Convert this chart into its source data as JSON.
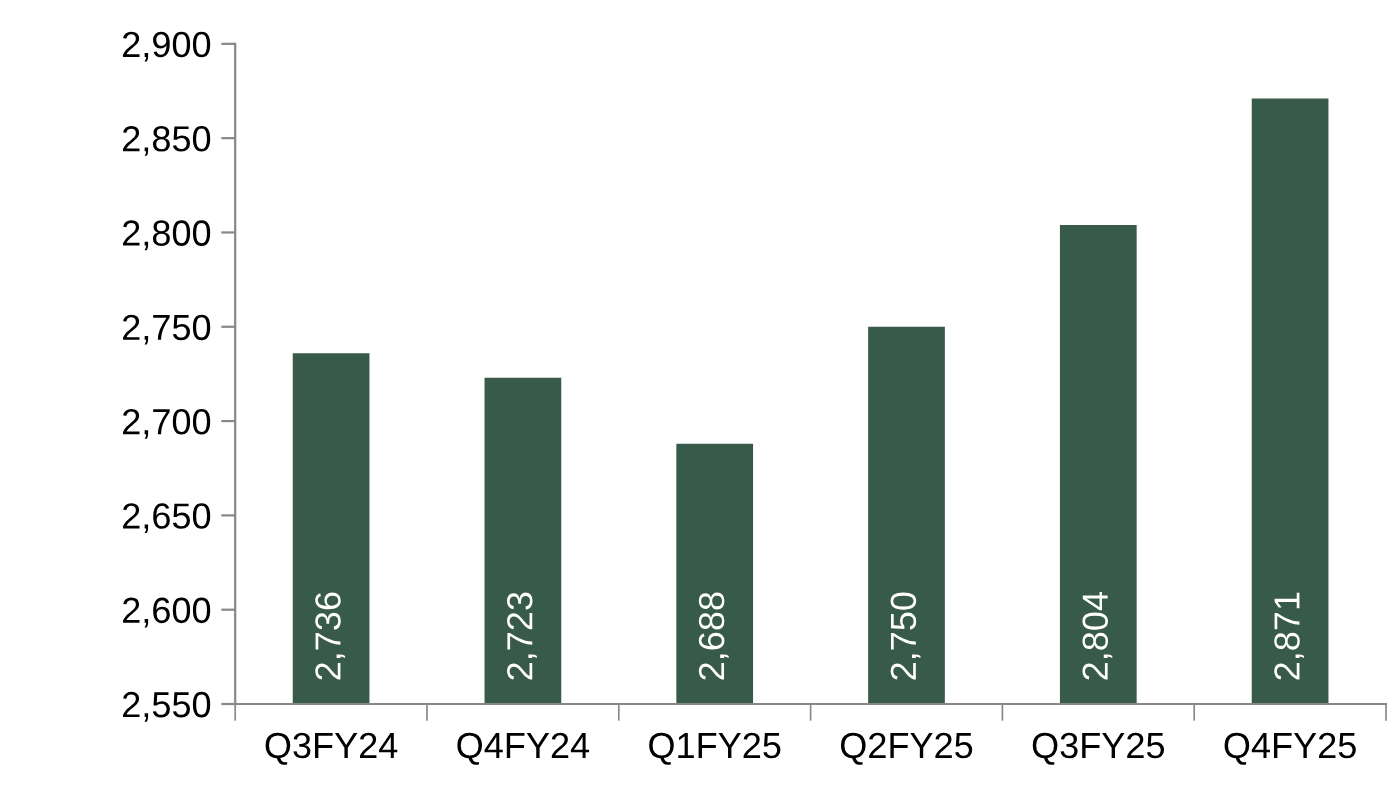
{
  "chart_data": {
    "type": "bar",
    "categories": [
      "Q3FY24",
      "Q4FY24",
      "Q1FY25",
      "Q2FY25",
      "Q3FY25",
      "Q4FY25"
    ],
    "values": [
      2736,
      2723,
      2688,
      2750,
      2804,
      2871
    ],
    "value_labels": [
      "2,736",
      "2,723",
      "2,688",
      "2,750",
      "2,804",
      "2,871"
    ],
    "color": "#375a4b",
    "ylim": [
      2550,
      2900
    ],
    "yticks": [
      {
        "value": 2550,
        "label": "2,550"
      },
      {
        "value": 2600,
        "label": "2,600"
      },
      {
        "value": 2650,
        "label": "2,650"
      },
      {
        "value": 2700,
        "label": "2,700"
      },
      {
        "value": 2750,
        "label": "2,750"
      },
      {
        "value": 2800,
        "label": "2,800"
      },
      {
        "value": 2850,
        "label": "2,850"
      },
      {
        "value": 2900,
        "label": "2,900"
      }
    ],
    "grid": false,
    "legend": false
  }
}
